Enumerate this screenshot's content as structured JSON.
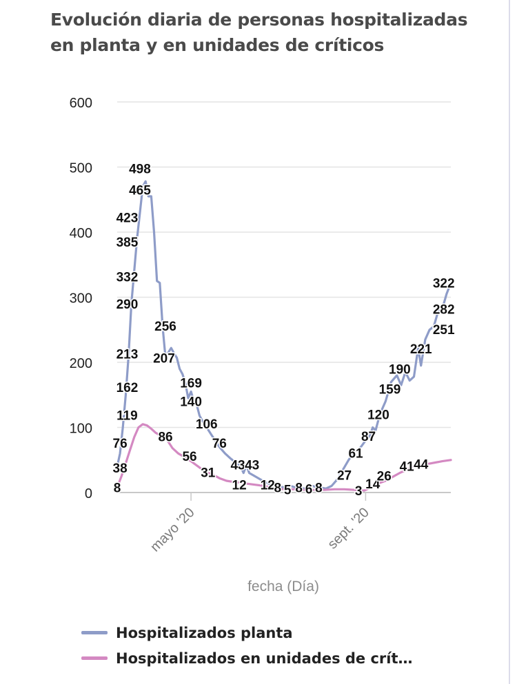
{
  "chart_data": {
    "type": "line",
    "title": "Evolución diaria de personas hospitalizadas en planta y en unidades de críticos",
    "xlabel": "fecha (Día)",
    "ylabel": "",
    "ylim": [
      0,
      600
    ],
    "yticks": [
      0,
      100,
      200,
      300,
      400,
      500,
      600
    ],
    "x_range": [
      "2020-03-10",
      "2020-10-31"
    ],
    "xticks": [
      {
        "date": "2020-05-01",
        "label": "mayo '20"
      },
      {
        "date": "2020-09-01",
        "label": "sept. '20"
      }
    ],
    "grid": true,
    "legend_position": "bottom",
    "series": [
      {
        "name": "Hospitalizados planta",
        "color": "#8e9cc8",
        "points": [
          [
            "2020-03-10",
            40
          ],
          [
            "2020-03-12",
            60
          ],
          [
            "2020-03-14",
            100
          ],
          [
            "2020-03-16",
            150
          ],
          [
            "2020-03-18",
            210
          ],
          [
            "2020-03-20",
            290
          ],
          [
            "2020-03-22",
            340
          ],
          [
            "2020-03-24",
            390
          ],
          [
            "2020-03-26",
            430
          ],
          [
            "2020-03-28",
            470
          ],
          [
            "2020-03-30",
            478
          ],
          [
            "2020-04-01",
            455
          ],
          [
            "2020-04-03",
            455
          ],
          [
            "2020-04-05",
            400
          ],
          [
            "2020-04-07",
            325
          ],
          [
            "2020-04-09",
            322
          ],
          [
            "2020-04-11",
            255
          ],
          [
            "2020-04-13",
            208
          ],
          [
            "2020-04-15",
            215
          ],
          [
            "2020-04-17",
            222
          ],
          [
            "2020-04-19",
            214
          ],
          [
            "2020-04-21",
            207
          ],
          [
            "2020-04-23",
            190
          ],
          [
            "2020-04-25",
            182
          ],
          [
            "2020-04-27",
            168
          ],
          [
            "2020-04-29",
            145
          ],
          [
            "2020-05-01",
            155
          ],
          [
            "2020-05-03",
            140
          ],
          [
            "2020-05-05",
            135
          ],
          [
            "2020-05-07",
            118
          ],
          [
            "2020-05-09",
            110
          ],
          [
            "2020-05-12",
            100
          ],
          [
            "2020-05-15",
            90
          ],
          [
            "2020-05-18",
            80
          ],
          [
            "2020-05-21",
            70
          ],
          [
            "2020-05-25",
            60
          ],
          [
            "2020-05-29",
            52
          ],
          [
            "2020-06-02",
            45
          ],
          [
            "2020-06-05",
            40
          ],
          [
            "2020-06-07",
            30
          ],
          [
            "2020-06-09",
            42
          ],
          [
            "2020-06-11",
            30
          ],
          [
            "2020-06-15",
            25
          ],
          [
            "2020-06-19",
            20
          ],
          [
            "2020-06-23",
            15
          ],
          [
            "2020-06-27",
            12
          ],
          [
            "2020-07-01",
            10
          ],
          [
            "2020-07-05",
            8
          ],
          [
            "2020-07-10",
            10
          ],
          [
            "2020-07-15",
            7
          ],
          [
            "2020-07-20",
            6
          ],
          [
            "2020-07-25",
            10
          ],
          [
            "2020-07-30",
            8
          ],
          [
            "2020-08-04",
            6
          ],
          [
            "2020-08-08",
            10
          ],
          [
            "2020-08-12",
            20
          ],
          [
            "2020-08-16",
            35
          ],
          [
            "2020-08-20",
            50
          ],
          [
            "2020-08-24",
            62
          ],
          [
            "2020-08-28",
            68
          ],
          [
            "2020-09-01",
            80
          ],
          [
            "2020-09-04",
            87
          ],
          [
            "2020-09-06",
            100
          ],
          [
            "2020-09-08",
            95
          ],
          [
            "2020-09-11",
            120
          ],
          [
            "2020-09-15",
            140
          ],
          [
            "2020-09-19",
            170
          ],
          [
            "2020-09-23",
            180
          ],
          [
            "2020-09-26",
            165
          ],
          [
            "2020-09-29",
            185
          ],
          [
            "2020-10-02",
            172
          ],
          [
            "2020-10-05",
            178
          ],
          [
            "2020-10-08",
            222
          ],
          [
            "2020-10-10",
            195
          ],
          [
            "2020-10-13",
            235
          ],
          [
            "2020-10-16",
            250
          ],
          [
            "2020-10-19",
            255
          ],
          [
            "2020-10-22",
            278
          ],
          [
            "2020-10-25",
            282
          ],
          [
            "2020-10-28",
            305
          ],
          [
            "2020-10-31",
            322
          ]
        ]
      },
      {
        "name": "Hospitalizados en unidades de crít…",
        "color": "#d489c2",
        "points": [
          [
            "2020-03-10",
            8
          ],
          [
            "2020-03-13",
            25
          ],
          [
            "2020-03-16",
            45
          ],
          [
            "2020-03-19",
            65
          ],
          [
            "2020-03-22",
            85
          ],
          [
            "2020-03-25",
            100
          ],
          [
            "2020-03-28",
            105
          ],
          [
            "2020-03-31",
            103
          ],
          [
            "2020-04-03",
            98
          ],
          [
            "2020-04-06",
            92
          ],
          [
            "2020-04-09",
            88
          ],
          [
            "2020-04-12",
            86
          ],
          [
            "2020-04-15",
            78
          ],
          [
            "2020-04-18",
            68
          ],
          [
            "2020-04-22",
            60
          ],
          [
            "2020-04-26",
            55
          ],
          [
            "2020-05-01",
            48
          ],
          [
            "2020-05-06",
            40
          ],
          [
            "2020-05-11",
            32
          ],
          [
            "2020-05-16",
            28
          ],
          [
            "2020-05-21",
            22
          ],
          [
            "2020-05-26",
            18
          ],
          [
            "2020-06-01",
            16
          ],
          [
            "2020-06-08",
            14
          ],
          [
            "2020-06-15",
            12
          ],
          [
            "2020-06-22",
            10
          ],
          [
            "2020-06-29",
            6
          ],
          [
            "2020-07-06",
            5
          ],
          [
            "2020-07-13",
            5
          ],
          [
            "2020-07-20",
            4
          ],
          [
            "2020-07-27",
            4
          ],
          [
            "2020-08-03",
            4
          ],
          [
            "2020-08-10",
            5
          ],
          [
            "2020-08-17",
            5
          ],
          [
            "2020-08-24",
            4
          ],
          [
            "2020-08-31",
            3
          ],
          [
            "2020-09-05",
            8
          ],
          [
            "2020-09-10",
            14
          ],
          [
            "2020-09-15",
            18
          ],
          [
            "2020-09-20",
            24
          ],
          [
            "2020-09-25",
            30
          ],
          [
            "2020-09-30",
            35
          ],
          [
            "2020-10-05",
            40
          ],
          [
            "2020-10-10",
            42
          ],
          [
            "2020-10-15",
            44
          ],
          [
            "2020-10-20",
            46
          ],
          [
            "2020-10-25",
            48
          ],
          [
            "2020-10-31",
            50
          ]
        ]
      }
    ],
    "data_labels": [
      {
        "date": "2020-03-10",
        "value": 8
      },
      {
        "date": "2020-03-12",
        "value": 38
      },
      {
        "date": "2020-03-12",
        "value": 76
      },
      {
        "date": "2020-03-17",
        "value": 119
      },
      {
        "date": "2020-03-17",
        "value": 162
      },
      {
        "date": "2020-03-17",
        "value": 213
      },
      {
        "date": "2020-03-17",
        "value": 290
      },
      {
        "date": "2020-03-17",
        "value": 332
      },
      {
        "date": "2020-03-17",
        "value": 385
      },
      {
        "date": "2020-03-17",
        "value": 423
      },
      {
        "date": "2020-03-26",
        "value": 465
      },
      {
        "date": "2020-03-26",
        "value": 498
      },
      {
        "date": "2020-04-13",
        "value": 86
      },
      {
        "date": "2020-04-13",
        "value": 256
      },
      {
        "date": "2020-04-12",
        "value": 207
      },
      {
        "date": "2020-04-30",
        "value": 56
      },
      {
        "date": "2020-05-01",
        "value": 169
      },
      {
        "date": "2020-05-01",
        "value": 140
      },
      {
        "date": "2020-05-12",
        "value": 106
      },
      {
        "date": "2020-05-13",
        "value": 31
      },
      {
        "date": "2020-05-21",
        "value": 76
      },
      {
        "date": "2020-06-03",
        "value": 43
      },
      {
        "date": "2020-06-04",
        "value": 12
      },
      {
        "date": "2020-06-13",
        "value": 43
      },
      {
        "date": "2020-06-24",
        "value": 12
      },
      {
        "date": "2020-07-01",
        "value": 8
      },
      {
        "date": "2020-07-08",
        "value": 5
      },
      {
        "date": "2020-07-16",
        "value": 8
      },
      {
        "date": "2020-07-23",
        "value": 6
      },
      {
        "date": "2020-07-30",
        "value": 8
      },
      {
        "date": "2020-08-17",
        "value": 27
      },
      {
        "date": "2020-08-25",
        "value": 61
      },
      {
        "date": "2020-08-27",
        "value": 3
      },
      {
        "date": "2020-09-03",
        "value": 87
      },
      {
        "date": "2020-09-06",
        "value": 14
      },
      {
        "date": "2020-09-10",
        "value": 120
      },
      {
        "date": "2020-09-14",
        "value": 26
      },
      {
        "date": "2020-09-18",
        "value": 159
      },
      {
        "date": "2020-09-25",
        "value": 190
      },
      {
        "date": "2020-09-30",
        "value": 41
      },
      {
        "date": "2020-10-10",
        "value": 221
      },
      {
        "date": "2020-10-10",
        "value": 44
      },
      {
        "date": "2020-10-26",
        "value": 251
      },
      {
        "date": "2020-10-26",
        "value": 282
      },
      {
        "date": "2020-10-26",
        "value": 322
      }
    ]
  }
}
